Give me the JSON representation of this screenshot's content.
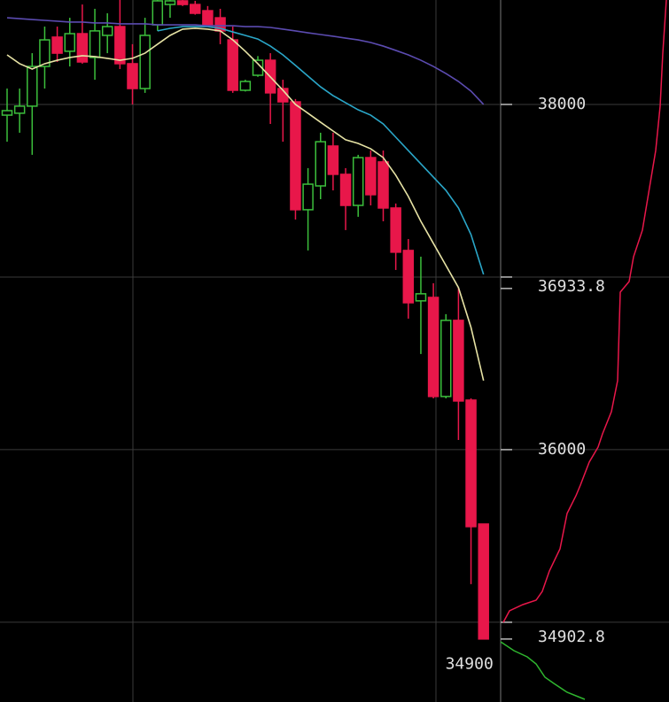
{
  "chart_data": {
    "type": "candlestick",
    "open": [
      37938,
      37949,
      37990,
      38220,
      38390,
      38308,
      38410,
      38272,
      38400,
      38451,
      38236,
      38092,
      38461,
      38579,
      38600,
      38579,
      38543,
      38502,
      38374,
      38082,
      38169,
      38256,
      38092,
      38015,
      37390,
      37528,
      37759,
      37595,
      37415,
      37692,
      37667,
      37400,
      37154,
      36862,
      36882,
      36308,
      36749,
      36287,
      35569
    ],
    "high": [
      38092,
      38092,
      38297,
      38451,
      38451,
      38502,
      38579,
      38554,
      38528,
      38605,
      38349,
      38502,
      38605,
      38605,
      38605,
      38600,
      38570,
      38554,
      38451,
      38143,
      38280,
      38297,
      38143,
      38031,
      37631,
      37836,
      37836,
      37631,
      37708,
      37733,
      37733,
      37426,
      37220,
      37118,
      36964,
      36785,
      36939,
      36297,
      35569
    ],
    "low": [
      37784,
      37836,
      37708,
      38092,
      38246,
      38220,
      38236,
      38143,
      38297,
      38205,
      38000,
      38067,
      38426,
      38502,
      38570,
      38520,
      38450,
      38349,
      38067,
      38075,
      38160,
      37887,
      37784,
      37333,
      37154,
      37451,
      37502,
      37272,
      37349,
      37415,
      37323,
      37041,
      36759,
      36554,
      36297,
      36297,
      36056,
      35221,
      34903
    ],
    "close": [
      37964,
      37990,
      38220,
      38374,
      38297,
      38410,
      38246,
      38426,
      38451,
      38236,
      38092,
      38400,
      38600,
      38600,
      38579,
      38528,
      38461,
      38426,
      38082,
      38133,
      38256,
      38067,
      38015,
      37390,
      37538,
      37784,
      37595,
      37415,
      37692,
      37477,
      37400,
      37144,
      36851,
      36903,
      36308,
      36749,
      36282,
      35554,
      34903
    ],
    "up_color": "#3cbf3c",
    "down_color": "#e8174a",
    "series": [
      {
        "color": "#e6e2a4",
        "values": [
          38287,
          38236,
          38205,
          38236,
          38256,
          38272,
          38282,
          38277,
          38267,
          38256,
          38267,
          38297,
          38349,
          38400,
          38436,
          38441,
          38436,
          38426,
          38374,
          38308,
          38236,
          38159,
          38082,
          38000,
          37949,
          37897,
          37846,
          37795,
          37774,
          37743,
          37692,
          37590,
          37467,
          37323,
          37195,
          37067,
          36939,
          36708,
          36400
        ]
      },
      {
        "color": "#2aa6c8",
        "values": [
          null,
          null,
          null,
          null,
          null,
          null,
          null,
          null,
          null,
          null,
          null,
          null,
          38426,
          38441,
          38451,
          38451,
          38451,
          38441,
          38420,
          38400,
          38379,
          38338,
          38287,
          38226,
          38164,
          38102,
          38051,
          38010,
          37969,
          37938,
          37887,
          37810,
          37733,
          37656,
          37579,
          37502,
          37400,
          37246,
          37015
        ]
      },
      {
        "color": "#5b4bb0",
        "values": [
          38502,
          38497,
          38492,
          38487,
          38482,
          38477,
          38477,
          38472,
          38472,
          38467,
          38467,
          38467,
          38461,
          38461,
          38461,
          38461,
          38456,
          38456,
          38456,
          38451,
          38451,
          38446,
          38436,
          38426,
          38415,
          38405,
          38395,
          38384,
          38374,
          38359,
          38338,
          38313,
          38287,
          38256,
          38220,
          38179,
          38133,
          38077,
          38000
        ]
      }
    ],
    "ylim": [
      34538,
      38605
    ],
    "yticks": [
      38000,
      36000
    ],
    "ygrid": [
      38000,
      37000,
      36000,
      35000
    ],
    "price_labels": [
      36933.8,
      34902.8
    ],
    "low_label": 34900
  }
}
